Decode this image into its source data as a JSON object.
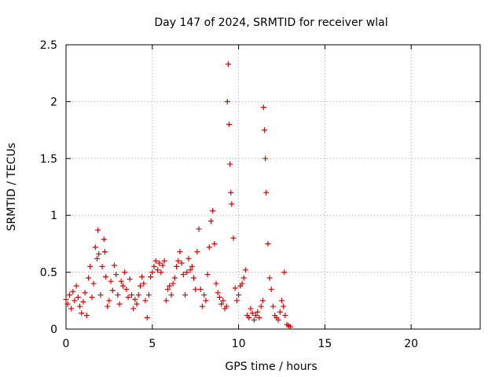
{
  "chart_data": {
    "type": "scatter",
    "title": "Day 147 of 2024, SRMTID for receiver wlal",
    "xlabel": "GPS time / hours",
    "ylabel": "SRMTID / TECUs",
    "xlim": [
      0,
      24
    ],
    "ylim": [
      0,
      2.5
    ],
    "xticks": [
      0,
      5,
      10,
      15,
      20
    ],
    "xtick_labels": [
      "0",
      "5",
      "10",
      "15",
      "20"
    ],
    "yticks": [
      0,
      0.5,
      1,
      1.5,
      2,
      2.5
    ],
    "ytick_labels": [
      "0",
      "0.5",
      "1",
      "1.5",
      "2",
      "2.5"
    ],
    "grid": true,
    "marker": "+",
    "color": "#e00000",
    "series": [
      {
        "name": "SRMTID",
        "x": [
          0.0,
          0.1,
          0.2,
          0.3,
          0.4,
          0.5,
          0.6,
          0.7,
          0.8,
          0.9,
          1.0,
          1.1,
          1.2,
          1.3,
          1.4,
          1.5,
          1.6,
          1.7,
          1.8,
          1.85,
          1.9,
          2.0,
          2.1,
          2.2,
          2.25,
          2.3,
          2.4,
          2.5,
          2.6,
          2.7,
          2.8,
          2.9,
          3.0,
          3.1,
          3.2,
          3.3,
          3.4,
          3.5,
          3.6,
          3.7,
          3.8,
          3.9,
          4.0,
          4.1,
          4.2,
          4.3,
          4.4,
          4.5,
          4.6,
          4.7,
          4.8,
          4.9,
          5.0,
          5.1,
          5.2,
          5.3,
          5.4,
          5.5,
          5.6,
          5.7,
          5.8,
          5.9,
          6.0,
          6.1,
          6.2,
          6.3,
          6.4,
          6.5,
          6.6,
          6.7,
          6.8,
          6.9,
          7.0,
          7.1,
          7.2,
          7.3,
          7.4,
          7.5,
          7.6,
          7.7,
          7.8,
          7.9,
          8.0,
          8.1,
          8.2,
          8.3,
          8.4,
          8.5,
          8.6,
          8.7,
          8.8,
          8.9,
          9.0,
          9.1,
          9.2,
          9.3,
          9.35,
          9.4,
          9.45,
          9.5,
          9.55,
          9.6,
          9.7,
          9.8,
          9.9,
          10.0,
          10.1,
          10.2,
          10.3,
          10.4,
          10.5,
          10.6,
          10.7,
          10.8,
          10.9,
          11.0,
          11.1,
          11.2,
          11.3,
          11.4,
          11.45,
          11.5,
          11.55,
          11.6,
          11.7,
          11.8,
          11.9,
          12.0,
          12.1,
          12.2,
          12.3,
          12.4,
          12.5,
          12.6,
          12.65,
          12.7,
          12.8,
          12.9,
          13.0
        ],
        "y": [
          0.26,
          0.22,
          0.3,
          0.18,
          0.33,
          0.25,
          0.38,
          0.28,
          0.2,
          0.14,
          0.24,
          0.32,
          0.12,
          0.45,
          0.55,
          0.28,
          0.4,
          0.72,
          0.62,
          0.87,
          0.66,
          0.3,
          0.55,
          0.79,
          0.68,
          0.46,
          0.2,
          0.25,
          0.42,
          0.34,
          0.56,
          0.48,
          0.3,
          0.22,
          0.42,
          0.38,
          0.5,
          0.35,
          0.28,
          0.44,
          0.3,
          0.18,
          0.26,
          0.22,
          0.3,
          0.38,
          0.46,
          0.4,
          0.25,
          0.1,
          0.3,
          0.46,
          0.5,
          0.55,
          0.6,
          0.52,
          0.58,
          0.5,
          0.56,
          0.6,
          0.25,
          0.35,
          0.38,
          0.3,
          0.4,
          0.45,
          0.55,
          0.6,
          0.68,
          0.58,
          0.48,
          0.3,
          0.5,
          0.62,
          0.52,
          0.55,
          0.45,
          0.35,
          0.68,
          0.88,
          0.35,
          0.2,
          0.3,
          0.25,
          0.48,
          0.72,
          0.95,
          1.04,
          0.75,
          0.4,
          0.32,
          0.28,
          0.22,
          0.25,
          0.18,
          0.2,
          2.0,
          2.33,
          1.8,
          1.45,
          1.2,
          1.1,
          0.8,
          0.36,
          0.25,
          0.3,
          0.38,
          0.4,
          0.45,
          0.52,
          0.12,
          0.1,
          0.18,
          0.14,
          0.08,
          0.12,
          0.15,
          0.1,
          0.2,
          0.25,
          1.95,
          1.75,
          1.5,
          1.2,
          0.75,
          0.45,
          0.35,
          0.2,
          0.12,
          0.1,
          0.08,
          0.15,
          0.25,
          0.2,
          0.5,
          0.12,
          0.04,
          0.03,
          0.02
        ]
      }
    ]
  }
}
